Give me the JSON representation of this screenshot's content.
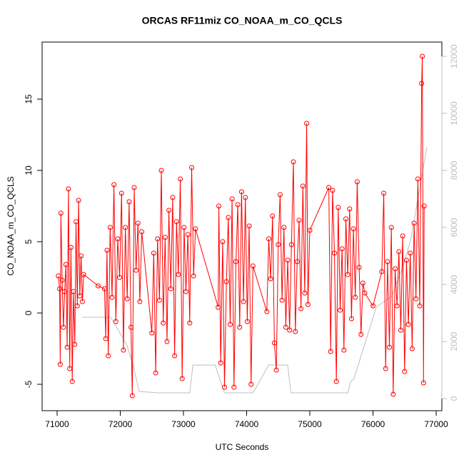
{
  "chart_data": {
    "type": "line",
    "title": "ORCAS RF11miz CO_NOAA_m_CO_QCLS",
    "xlabel": "UTC Seconds",
    "ylabel": "CO_NOAA_m_CO_QCLS",
    "xlim": [
      70763,
      77090
    ],
    "ylim": [
      -6.85,
      19
    ],
    "y2lim": [
      -425,
      12500
    ],
    "xticks": [
      71000,
      72000,
      73000,
      74000,
      75000,
      76000,
      77000
    ],
    "yticks": [
      -5,
      0,
      5,
      10,
      15
    ],
    "y2ticks": [
      0,
      2000,
      4000,
      6000,
      8000,
      10000,
      12000
    ],
    "series": [
      {
        "color": "#ff0000",
        "marker": "circle",
        "x": [
          71020,
          71040,
          71050,
          71060,
          71080,
          71100,
          71120,
          71140,
          71160,
          71180,
          71200,
          71220,
          71240,
          71260,
          71280,
          71300,
          71320,
          71340,
          71360,
          71380,
          71400,
          71420,
          71650,
          71750,
          71770,
          71790,
          71810,
          71840,
          71870,
          71900,
          71930,
          71960,
          71990,
          72020,
          72050,
          72080,
          72110,
          72140,
          72170,
          72190,
          72220,
          72250,
          72280,
          72310,
          72340,
          72500,
          72530,
          72560,
          72590,
          72620,
          72650,
          72680,
          72710,
          72740,
          72770,
          72800,
          72830,
          72860,
          72890,
          72920,
          72950,
          72980,
          73010,
          73040,
          73070,
          73100,
          73130,
          73160,
          73190,
          73550,
          73560,
          73590,
          73620,
          73650,
          73680,
          73710,
          73740,
          73770,
          73800,
          73830,
          73860,
          73890,
          73920,
          73950,
          73980,
          74010,
          74040,
          74070,
          74100,
          74320,
          74350,
          74380,
          74410,
          74440,
          74470,
          74500,
          74530,
          74560,
          74590,
          74620,
          74650,
          74680,
          74710,
          74740,
          74770,
          74800,
          74830,
          74860,
          74890,
          74920,
          74950,
          74970,
          75000,
          75300,
          75330,
          75360,
          75390,
          75420,
          75450,
          75480,
          75510,
          75540,
          75570,
          75600,
          75630,
          75660,
          75690,
          75720,
          75750,
          75780,
          75810,
          75840,
          75870,
          76000,
          76140,
          76170,
          76200,
          76230,
          76260,
          76290,
          76320,
          76350,
          76380,
          76410,
          76440,
          76470,
          76500,
          76530,
          76560,
          76590,
          76620,
          76650,
          76680,
          76710,
          76740,
          76770,
          76780,
          76800,
          76810
        ],
        "values": [
          2.6,
          1.7,
          -3.6,
          7.0,
          2.3,
          -1.0,
          1.5,
          3.4,
          -2.4,
          8.7,
          -3.9,
          4.6,
          -4.8,
          1.5,
          -2.2,
          6.4,
          0.5,
          7.9,
          1.2,
          4.0,
          0.8,
          2.7,
          1.9,
          1.7,
          -1.8,
          4.4,
          -3.0,
          6.0,
          1.1,
          9.0,
          -0.6,
          5.2,
          2.5,
          8.4,
          -2.6,
          6.0,
          1.0,
          7.8,
          -1.0,
          -5.8,
          8.8,
          3.0,
          6.3,
          0.8,
          5.7,
          -1.4,
          4.2,
          -4.2,
          5.2,
          0.9,
          10.0,
          -0.7,
          5.3,
          -2.0,
          7.2,
          1.7,
          8.1,
          -3.0,
          6.4,
          2.7,
          9.4,
          -4.6,
          6.0,
          1.5,
          5.5,
          -0.7,
          10.2,
          2.6,
          5.9,
          0.4,
          7.5,
          -3.5,
          5.0,
          -5.2,
          2.2,
          6.7,
          -0.8,
          8.0,
          -5.2,
          3.6,
          7.6,
          -1.0,
          8.5,
          0.8,
          8.1,
          -0.6,
          6.1,
          -5.0,
          3.3,
          0.1,
          5.2,
          2.4,
          6.8,
          -2.1,
          -4.0,
          4.8,
          8.3,
          0.9,
          6.0,
          -1.0,
          3.7,
          -1.2,
          4.8,
          10.6,
          -1.3,
          3.6,
          6.5,
          0.3,
          8.9,
          1.4,
          13.3,
          0.6,
          5.8,
          8.8,
          -2.7,
          8.6,
          4.2,
          -4.8,
          7.4,
          0.2,
          4.5,
          -2.6,
          6.6,
          2.7,
          7.3,
          -0.4,
          5.9,
          1.1,
          9.2,
          3.2,
          -1.5,
          2.1,
          1.4,
          0.5,
          2.9,
          8.4,
          -3.9,
          3.6,
          -2.4,
          6.0,
          -5.7,
          3.1,
          0.5,
          4.3,
          -1.2,
          5.4,
          -4.1,
          3.7,
          -0.8,
          4.2,
          -2.5,
          6.3,
          1.0,
          9.4,
          0.5,
          16.1,
          18.0,
          -4.9,
          7.5
        ]
      },
      {
        "color": "#bebebe",
        "axis": "y2",
        "x": [
          71400,
          71850,
          72100,
          72200,
          72300,
          72600,
          73100,
          73150,
          73500,
          73650,
          74100,
          74350,
          74650,
          74700,
          75600,
          75650,
          75700,
          76050,
          76300,
          76500,
          76600,
          76850
        ],
        "values": [
          2850,
          2850,
          1900,
          1200,
          250,
          200,
          200,
          1175,
          1175,
          200,
          200,
          1175,
          1175,
          200,
          200,
          600,
          700,
          3200,
          3600,
          4800,
          5600,
          8800
        ]
      }
    ]
  }
}
